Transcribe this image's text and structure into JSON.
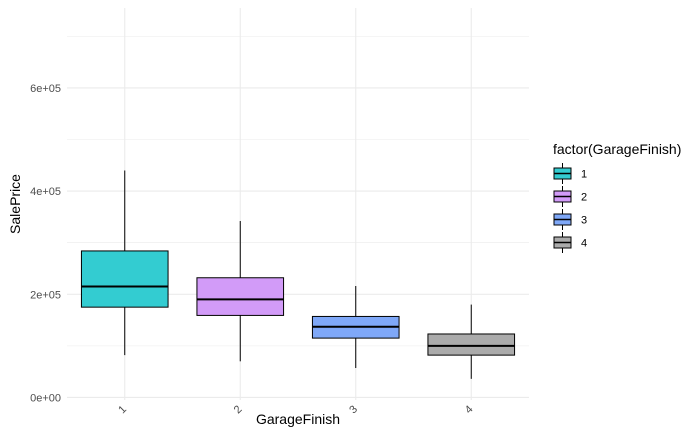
{
  "chart_data": {
    "type": "boxplot",
    "xlabel": "GarageFinish",
    "ylabel": "SalePrice",
    "categories": [
      "1",
      "2",
      "3",
      "4"
    ],
    "y_ticks": [
      0,
      200000,
      400000,
      600000
    ],
    "y_tick_labels": [
      "0e+00",
      "2e+05",
      "4e+05",
      "6e+05"
    ],
    "ylim": [
      -5000,
      755000
    ],
    "grid": true,
    "legend": {
      "title": "factor(GarageFinish)",
      "position": "right",
      "entries": [
        "1",
        "2",
        "3",
        "4"
      ]
    },
    "series": [
      {
        "name": "1",
        "color": "#33CCD1",
        "whisker_low": 82000,
        "q1": 175000,
        "median": 215000,
        "q3": 284000,
        "whisker_high": 440000
      },
      {
        "name": "2",
        "color": "#D29BF8",
        "whisker_low": 70000,
        "q1": 159000,
        "median": 190000,
        "q3": 232000,
        "whisker_high": 342000
      },
      {
        "name": "3",
        "color": "#7FA8F8",
        "whisker_low": 57000,
        "q1": 115000,
        "median": 137000,
        "q3": 157000,
        "whisker_high": 216000
      },
      {
        "name": "4",
        "color": "#ABABAB",
        "whisker_low": 36000,
        "q1": 82000,
        "median": 100000,
        "q3": 123000,
        "whisker_high": 180000
      }
    ]
  }
}
